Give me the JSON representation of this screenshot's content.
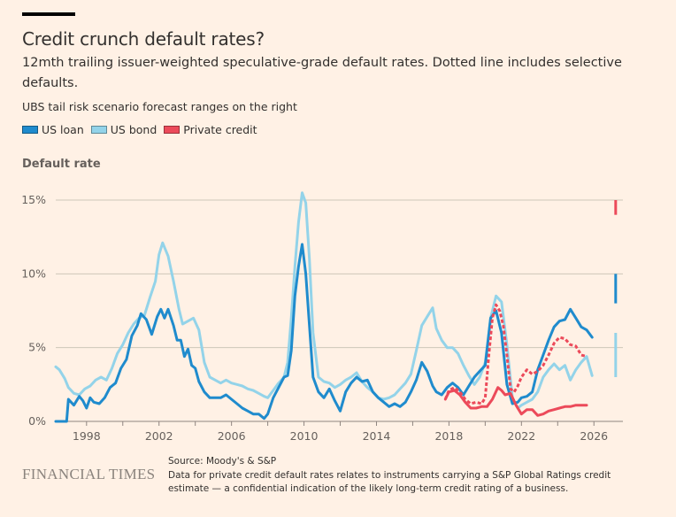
{
  "header": {
    "title": "Credit crunch default rates?",
    "subtitle": "12mth trailing issuer-weighted speculative-grade default rates. Dotted line includes selective defaults.",
    "note": "UBS tail risk scenario forecast ranges on the right"
  },
  "legend": [
    {
      "label": "US loan",
      "color": "#1f8bcd"
    },
    {
      "label": "US bond",
      "color": "#93d3e9"
    },
    {
      "label": "Private credit",
      "color": "#ec4a5a"
    }
  ],
  "footer": {
    "logo": "FINANCIAL TIMES",
    "source": "Source: Moody's & S&P",
    "description": "Data for private credit default rates relates to instruments carrying a S&P Global Ratings credit estimate — a confidential indication of the likely long-term credit rating of a business."
  },
  "chart_data": {
    "type": "line",
    "title": "Credit crunch default rates?",
    "xlabel": "",
    "ylabel": "Default rate",
    "xlim": [
      1996.3,
      2027.6
    ],
    "ylim": [
      0,
      15
    ],
    "grid": true,
    "legend_position": "top-left",
    "y_ticks": [
      {
        "value": 0,
        "label": "0%"
      },
      {
        "value": 5,
        "label": "5%"
      },
      {
        "value": 10,
        "label": "10%"
      },
      {
        "value": 15,
        "label": "15%"
      }
    ],
    "x_ticks": [
      {
        "value": 1998,
        "label": "1998"
      },
      {
        "value": 2000,
        "label": ""
      },
      {
        "value": 2002,
        "label": "2002"
      },
      {
        "value": 2004,
        "label": ""
      },
      {
        "value": 2006,
        "label": "2006"
      },
      {
        "value": 2008,
        "label": ""
      },
      {
        "value": 2010,
        "label": "2010"
      },
      {
        "value": 2012,
        "label": ""
      },
      {
        "value": 2014,
        "label": "2014"
      },
      {
        "value": 2016,
        "label": ""
      },
      {
        "value": 2018,
        "label": "2018"
      },
      {
        "value": 2020,
        "label": ""
      },
      {
        "value": 2022,
        "label": "2022"
      },
      {
        "value": 2024,
        "label": ""
      },
      {
        "value": 2026,
        "label": "2026"
      }
    ],
    "series": [
      {
        "name": "US bond",
        "color": "#93d3e9",
        "style": "solid",
        "x": [
          1996.3,
          1996.5,
          1996.8,
          1997.0,
          1997.3,
          1997.6,
          1997.9,
          1998.2,
          1998.5,
          1998.8,
          1999.1,
          1999.4,
          1999.7,
          2000.0,
          2000.3,
          2000.6,
          2000.9,
          2001.2,
          2001.5,
          2001.8,
          2002.0,
          2002.2,
          2002.5,
          2002.8,
          2003.1,
          2003.3,
          2003.6,
          2003.9,
          2004.2,
          2004.5,
          2004.8,
          2005.1,
          2005.4,
          2005.7,
          2006.0,
          2006.3,
          2006.6,
          2006.9,
          2007.2,
          2007.5,
          2007.8,
          2008.0,
          2008.3,
          2008.6,
          2008.9,
          2009.1,
          2009.3,
          2009.5,
          2009.7,
          2009.9,
          2010.1,
          2010.3,
          2010.5,
          2010.8,
          2011.1,
          2011.4,
          2011.7,
          2012.0,
          2012.3,
          2012.6,
          2012.9,
          2013.2,
          2013.5,
          2013.8,
          2014.1,
          2014.4,
          2014.7,
          2015.0,
          2015.3,
          2015.6,
          2015.9,
          2016.2,
          2016.5,
          2016.8,
          2017.1,
          2017.3,
          2017.6,
          2017.9,
          2018.2,
          2018.5,
          2018.8,
          2019.1,
          2019.4,
          2019.7,
          2020.0,
          2020.3,
          2020.6,
          2020.9,
          2021.2,
          2021.5,
          2021.8,
          2022.0,
          2022.3,
          2022.6,
          2022.9,
          2023.2,
          2023.5,
          2023.8,
          2024.1,
          2024.4,
          2024.7,
          2025.0,
          2025.3,
          2025.6,
          2025.9
        ],
        "y": [
          3.7,
          3.5,
          2.9,
          2.3,
          1.9,
          1.8,
          2.2,
          2.4,
          2.8,
          3.0,
          2.8,
          3.6,
          4.6,
          5.2,
          6.0,
          6.6,
          7.0,
          7.2,
          8.4,
          9.5,
          11.3,
          12.1,
          11.2,
          9.5,
          7.6,
          6.6,
          6.8,
          7.0,
          6.2,
          4.0,
          3.0,
          2.8,
          2.6,
          2.8,
          2.6,
          2.5,
          2.4,
          2.2,
          2.1,
          1.9,
          1.7,
          1.6,
          2.1,
          2.6,
          3.0,
          4.0,
          7.0,
          10.5,
          13.5,
          15.5,
          14.8,
          11.0,
          6.0,
          3.0,
          2.7,
          2.6,
          2.3,
          2.5,
          2.8,
          3.0,
          3.3,
          2.7,
          2.3,
          2.0,
          1.6,
          1.5,
          1.6,
          1.8,
          2.2,
          2.6,
          3.2,
          4.8,
          6.5,
          7.1,
          7.7,
          6.3,
          5.5,
          5.0,
          5.0,
          4.6,
          3.8,
          3.1,
          2.5,
          3.0,
          4.0,
          7.0,
          8.5,
          8.1,
          5.2,
          1.6,
          0.9,
          1.1,
          1.3,
          1.5,
          2.0,
          3.0,
          3.5,
          3.9,
          3.5,
          3.8,
          2.8,
          3.5,
          4.0,
          4.4,
          3.1
        ]
      },
      {
        "name": "US loan",
        "color": "#1f8bcd",
        "style": "solid",
        "x": [
          1996.3,
          1996.6,
          1996.9,
          1997.0,
          1997.3,
          1997.6,
          1997.8,
          1998.0,
          1998.2,
          1998.4,
          1998.7,
          1999.0,
          1999.3,
          1999.6,
          1999.9,
          2000.2,
          2000.5,
          2000.8,
          2001.0,
          2001.3,
          2001.6,
          2001.9,
          2002.1,
          2002.3,
          2002.5,
          2002.8,
          2003.0,
          2003.2,
          2003.4,
          2003.6,
          2003.8,
          2004.0,
          2004.2,
          2004.5,
          2004.8,
          2005.1,
          2005.4,
          2005.7,
          2006.0,
          2006.3,
          2006.6,
          2006.9,
          2007.2,
          2007.5,
          2007.8,
          2008.0,
          2008.3,
          2008.6,
          2008.9,
          2009.1,
          2009.3,
          2009.5,
          2009.7,
          2009.9,
          2010.1,
          2010.3,
          2010.5,
          2010.8,
          2011.1,
          2011.4,
          2011.7,
          2012.0,
          2012.3,
          2012.6,
          2012.9,
          2013.2,
          2013.5,
          2013.8,
          2014.1,
          2014.4,
          2014.7,
          2015.0,
          2015.3,
          2015.6,
          2015.9,
          2016.2,
          2016.5,
          2016.8,
          2017.1,
          2017.3,
          2017.6,
          2017.9,
          2018.2,
          2018.5,
          2018.8,
          2019.1,
          2019.4,
          2019.7,
          2020.0,
          2020.3,
          2020.6,
          2020.9,
          2021.2,
          2021.5,
          2021.8,
          2022.0,
          2022.3,
          2022.6,
          2022.9,
          2023.2,
          2023.5,
          2023.8,
          2024.1,
          2024.4,
          2024.7,
          2025.0,
          2025.3,
          2025.6,
          2025.9
        ],
        "y": [
          0.0,
          0.0,
          0.0,
          1.5,
          1.1,
          1.7,
          1.4,
          0.9,
          1.6,
          1.3,
          1.2,
          1.6,
          2.3,
          2.6,
          3.6,
          4.2,
          5.8,
          6.5,
          7.3,
          6.9,
          5.9,
          7.1,
          7.6,
          7.0,
          7.6,
          6.5,
          5.5,
          5.5,
          4.4,
          4.9,
          3.8,
          3.6,
          2.7,
          2.0,
          1.6,
          1.6,
          1.6,
          1.8,
          1.5,
          1.2,
          0.9,
          0.7,
          0.5,
          0.5,
          0.2,
          0.5,
          1.6,
          2.3,
          3.0,
          3.1,
          4.8,
          8.5,
          10.5,
          12.0,
          10.0,
          6.5,
          3.0,
          2.0,
          1.6,
          2.2,
          1.4,
          0.7,
          2.0,
          2.6,
          3.0,
          2.7,
          2.8,
          2.0,
          1.6,
          1.3,
          1.0,
          1.2,
          1.0,
          1.3,
          2.0,
          2.8,
          4.0,
          3.4,
          2.4,
          2.0,
          1.8,
          2.3,
          2.6,
          2.3,
          1.8,
          2.4,
          3.0,
          3.4,
          3.8,
          7.0,
          7.5,
          6.0,
          2.5,
          1.2,
          1.3,
          1.6,
          1.7,
          2.0,
          3.5,
          4.5,
          5.5,
          6.4,
          6.8,
          6.9,
          7.6,
          7.0,
          6.4,
          6.2,
          5.7
        ]
      },
      {
        "name": "Private credit",
        "color": "#ec4a5a",
        "style": "solid",
        "x": [
          2017.8,
          2018.0,
          2018.3,
          2018.6,
          2018.9,
          2019.2,
          2019.5,
          2019.8,
          2020.1,
          2020.4,
          2020.7,
          2020.9,
          2021.1,
          2021.4,
          2021.7,
          2022.0,
          2022.3,
          2022.6,
          2022.9,
          2023.2,
          2023.5,
          2023.8,
          2024.1,
          2024.4,
          2024.7,
          2025.0,
          2025.3,
          2025.6
        ],
        "y": [
          1.5,
          2.0,
          2.1,
          1.8,
          1.3,
          0.9,
          0.9,
          1.0,
          1.0,
          1.5,
          2.3,
          2.1,
          1.8,
          1.9,
          1.1,
          0.5,
          0.8,
          0.8,
          0.4,
          0.5,
          0.7,
          0.8,
          0.9,
          1.0,
          1.0,
          1.1,
          1.1,
          1.1
        ]
      },
      {
        "name": "Private credit (incl. selective defaults)",
        "color": "#ec4a5a",
        "style": "dotted",
        "x": [
          2017.8,
          2018.0,
          2018.3,
          2018.6,
          2018.9,
          2019.2,
          2019.5,
          2019.8,
          2020.0,
          2020.2,
          2020.4,
          2020.6,
          2020.8,
          2021.0,
          2021.2,
          2021.4,
          2021.6,
          2021.8,
          2022.0,
          2022.3,
          2022.6,
          2022.9,
          2023.2,
          2023.5,
          2023.8,
          2024.1,
          2024.4,
          2024.7,
          2025.0,
          2025.3,
          2025.6
        ],
        "y": [
          1.5,
          2.1,
          2.3,
          2.0,
          1.5,
          1.2,
          1.3,
          1.2,
          1.6,
          4.5,
          7.0,
          7.9,
          7.5,
          6.5,
          4.5,
          2.2,
          2.0,
          2.4,
          3.0,
          3.5,
          3.2,
          3.4,
          3.8,
          4.5,
          5.3,
          5.7,
          5.6,
          5.2,
          5.1,
          4.5,
          4.4
        ]
      }
    ],
    "forecast_ranges": [
      {
        "name": "Private credit",
        "color": "#ec4a5a",
        "low": 14.0,
        "high": 15.0
      },
      {
        "name": "US loan",
        "color": "#1f8bcd",
        "low": 8.0,
        "high": 10.0
      },
      {
        "name": "US bond",
        "color": "#93d3e9",
        "low": 3.0,
        "high": 6.0
      }
    ],
    "forecast_x": 2027.2
  }
}
